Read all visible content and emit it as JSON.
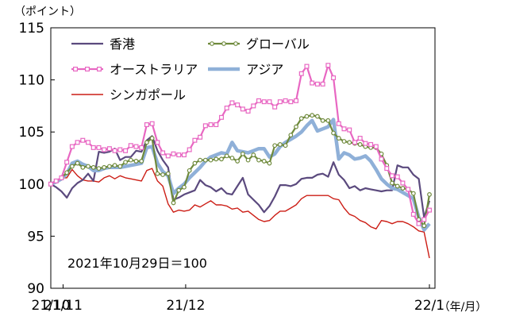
{
  "chart_data": {
    "type": "line",
    "y_unit_label": "（ポイント）",
    "x_unit_label": "（年/月）",
    "note": "2021年10月29日＝100",
    "ylim": [
      90,
      115
    ],
    "yticks": [
      "90",
      "95",
      "100",
      "105",
      "110",
      "115"
    ],
    "xticks": [
      "21/10",
      "21/11",
      "21/12",
      "22/1"
    ],
    "x_range": [
      "2021-10-29",
      "2022-01-31"
    ],
    "grid": false,
    "legend_position": "top",
    "series": [
      {
        "name": "香港",
        "color": "#5b4a7e",
        "marker": "none",
        "values": [
          100.0,
          99.7,
          99.3,
          98.7,
          99.6,
          100.1,
          100.4,
          101.0,
          100.3,
          103.1,
          103.0,
          103.1,
          103.4,
          102.3,
          102.6,
          102.6,
          103.2,
          103.1,
          104.2,
          104.6,
          103.2,
          102.3,
          101.6,
          98.5,
          98.7,
          99.0,
          99.2,
          99.4,
          100.4,
          99.9,
          99.7,
          99.3,
          99.6,
          99.1,
          99.0,
          99.8,
          100.6,
          99.0,
          98.5,
          98.0,
          97.3,
          97.9,
          98.8,
          99.9,
          99.9,
          99.8,
          100.0,
          100.5,
          100.6,
          100.6,
          100.9,
          101.0,
          100.7,
          102.1,
          100.9,
          100.4,
          99.6,
          99.8,
          99.4,
          99.6,
          99.5,
          99.4,
          99.3,
          99.4,
          99.4,
          101.8,
          101.6,
          101.6,
          100.9,
          100.5,
          96.8,
          98.4
        ]
      },
      {
        "name": "グローバル",
        "color": "#6f8a3c",
        "marker": "circle",
        "values": [
          100.0,
          100.3,
          100.6,
          101.1,
          101.7,
          102.0,
          101.6,
          101.7,
          101.6,
          101.5,
          101.6,
          101.7,
          101.8,
          101.7,
          102.1,
          102.3,
          102.2,
          102.2,
          104.0,
          104.4,
          101.0,
          100.9,
          101.0,
          98.2,
          99.4,
          99.7,
          101.3,
          102.0,
          102.3,
          102.3,
          102.3,
          102.4,
          102.4,
          102.7,
          102.5,
          102.2,
          102.9,
          102.3,
          102.8,
          102.3,
          102.2,
          102.0,
          103.7,
          103.8,
          103.7,
          104.7,
          105.5,
          106.3,
          106.5,
          106.6,
          106.5,
          106.1,
          106.1,
          104.9,
          104.4,
          104.1,
          104.0,
          103.9,
          103.8,
          103.6,
          103.5,
          103.5,
          102.9,
          101.8,
          100.1,
          99.8,
          99.6,
          99.5,
          99.1,
          96.6,
          96.0,
          99.0
        ]
      },
      {
        "name": "オーストラリア",
        "color": "#e867c2",
        "marker": "square",
        "values": [
          100.0,
          100.3,
          100.6,
          102.1,
          103.6,
          104.0,
          104.2,
          104.0,
          103.5,
          103.5,
          103.3,
          103.4,
          103.2,
          103.3,
          103.2,
          103.7,
          103.6,
          103.5,
          105.7,
          105.8,
          104.0,
          103.0,
          102.7,
          102.9,
          102.8,
          102.8,
          103.3,
          104.2,
          104.5,
          105.6,
          105.7,
          105.7,
          106.4,
          107.3,
          107.8,
          107.6,
          107.2,
          107.0,
          107.5,
          108.0,
          107.9,
          107.9,
          107.4,
          107.9,
          108.0,
          107.9,
          108.0,
          110.6,
          111.3,
          109.7,
          109.6,
          109.6,
          111.4,
          110.2,
          105.8,
          105.3,
          105.2,
          104.0,
          104.4,
          103.9,
          103.8,
          103.6,
          102.4,
          101.5,
          100.8,
          100.7,
          100.1,
          99.5,
          97.1,
          96.2,
          96.6,
          97.5
        ]
      },
      {
        "name": "アジア",
        "color": "#8fb0d8",
        "marker": "none",
        "values": [
          100.0,
          100.2,
          100.5,
          101.0,
          102.0,
          102.2,
          101.9,
          101.7,
          101.3,
          101.3,
          101.5,
          101.6,
          101.6,
          101.6,
          101.7,
          101.8,
          101.9,
          102.0,
          103.5,
          103.6,
          102.0,
          101.2,
          100.8,
          99.1,
          99.6,
          100.0,
          100.6,
          101.1,
          101.6,
          102.2,
          102.6,
          102.8,
          103.0,
          102.9,
          104.0,
          103.2,
          103.1,
          103.0,
          103.2,
          103.4,
          103.4,
          102.6,
          102.9,
          103.6,
          104.0,
          104.3,
          104.6,
          105.0,
          105.6,
          106.1,
          105.1,
          105.3,
          105.5,
          106.2,
          102.4,
          103.0,
          102.8,
          102.4,
          102.5,
          102.7,
          102.2,
          101.4,
          100.5,
          100.0,
          99.6,
          99.5,
          99.2,
          98.9,
          98.6,
          96.8,
          95.6,
          96.2
        ]
      },
      {
        "name": "シンガポール",
        "color": "#cc1d15",
        "marker": "none",
        "values": [
          100.0,
          100.3,
          100.6,
          100.6,
          101.4,
          100.8,
          100.4,
          100.3,
          100.3,
          100.2,
          100.6,
          100.8,
          100.5,
          100.8,
          100.6,
          100.5,
          100.4,
          100.3,
          101.3,
          101.5,
          100.3,
          99.8,
          98.1,
          97.3,
          97.5,
          97.4,
          97.5,
          98.0,
          97.8,
          98.1,
          98.4,
          98.0,
          98.0,
          97.9,
          97.6,
          97.7,
          97.3,
          97.4,
          97.0,
          96.6,
          96.4,
          96.5,
          97.0,
          97.4,
          97.4,
          97.7,
          98.0,
          98.6,
          98.9,
          98.9,
          98.9,
          98.9,
          98.9,
          98.6,
          98.5,
          97.7,
          97.1,
          96.9,
          96.5,
          96.3,
          95.9,
          95.7,
          96.5,
          96.4,
          96.2,
          96.4,
          96.4,
          96.2,
          95.9,
          95.5,
          95.4,
          92.9
        ]
      }
    ]
  }
}
